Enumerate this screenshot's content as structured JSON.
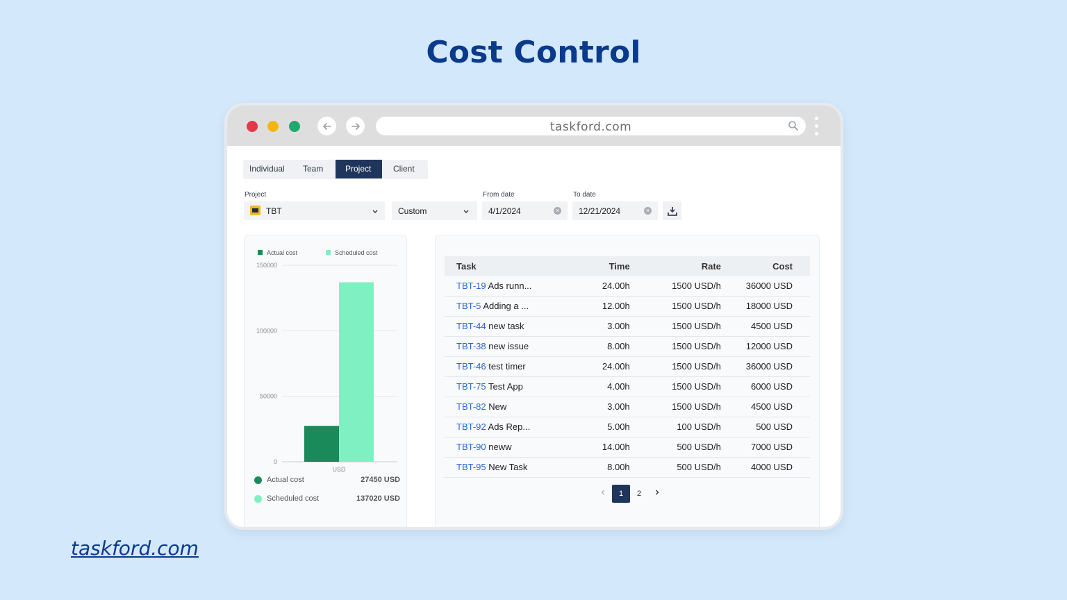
{
  "page": {
    "title": "Cost Control",
    "footer_link": "taskford.com"
  },
  "browser": {
    "url": "taskford.com"
  },
  "tabs": [
    "Individual",
    "Team",
    "Project",
    "Client"
  ],
  "active_tab": "Project",
  "filters": {
    "project_label": "Project",
    "project_value": "TBT",
    "range_value": "Custom",
    "from_label": "From date",
    "from_value": "4/1/2024",
    "to_label": "To date",
    "to_value": "12/21/2024"
  },
  "colors": {
    "actual": "#1b8a5a",
    "scheduled": "#7ff0c2",
    "accent": "#20355c",
    "link": "#2c64d6"
  },
  "chart_data": {
    "type": "bar",
    "categories": [
      "USD"
    ],
    "series": [
      {
        "name": "Actual cost",
        "values": [
          27450
        ]
      },
      {
        "name": "Scheduled cost",
        "values": [
          137020
        ]
      }
    ],
    "ylim": [
      0,
      150000
    ],
    "yticks": [
      "150000",
      "100000",
      "50000",
      "0"
    ],
    "xlabel": "USD",
    "legend": "top",
    "grid": true
  },
  "chart_summary": {
    "actual_label": "Actual cost",
    "actual_value": "27450 USD",
    "scheduled_label": "Scheduled cost",
    "scheduled_value": "137020 USD"
  },
  "table": {
    "headers": {
      "task": "Task",
      "time": "Time",
      "rate": "Rate",
      "cost": "Cost"
    },
    "rows": [
      {
        "key": "TBT-19",
        "name": "Ads runn...",
        "time": "24.00h",
        "rate": "1500 USD/h",
        "cost": "36000 USD"
      },
      {
        "key": "TBT-5",
        "name": "Adding a ...",
        "time": "12.00h",
        "rate": "1500 USD/h",
        "cost": "18000 USD"
      },
      {
        "key": "TBT-44",
        "name": "new task",
        "time": "3.00h",
        "rate": "1500 USD/h",
        "cost": "4500 USD"
      },
      {
        "key": "TBT-38",
        "name": "new issue",
        "time": "8.00h",
        "rate": "1500 USD/h",
        "cost": "12000 USD"
      },
      {
        "key": "TBT-46",
        "name": "test timer",
        "time": "24.00h",
        "rate": "1500 USD/h",
        "cost": "36000 USD"
      },
      {
        "key": "TBT-75",
        "name": "Test App",
        "time": "4.00h",
        "rate": "1500 USD/h",
        "cost": "6000 USD"
      },
      {
        "key": "TBT-82",
        "name": "New",
        "time": "3.00h",
        "rate": "1500 USD/h",
        "cost": "4500 USD"
      },
      {
        "key": "TBT-92",
        "name": "Ads Rep...",
        "time": "5.00h",
        "rate": "100 USD/h",
        "cost": "500 USD"
      },
      {
        "key": "TBT-90",
        "name": "neww",
        "time": "14.00h",
        "rate": "500 USD/h",
        "cost": "7000 USD"
      },
      {
        "key": "TBT-95",
        "name": "New Task",
        "time": "8.00h",
        "rate": "500 USD/h",
        "cost": "4000 USD"
      }
    ]
  },
  "pagination": {
    "pages": [
      "1",
      "2"
    ],
    "current": "1"
  },
  "icons": {
    "back": "arrow-left-icon",
    "forward": "arrow-right-icon",
    "search": "search-icon",
    "menu": "kebab-menu-icon",
    "download": "download-icon",
    "chevron": "chevron-down-icon",
    "clear": "clear-circle-icon",
    "prev": "chevron-left-icon",
    "next": "chevron-right-icon"
  }
}
